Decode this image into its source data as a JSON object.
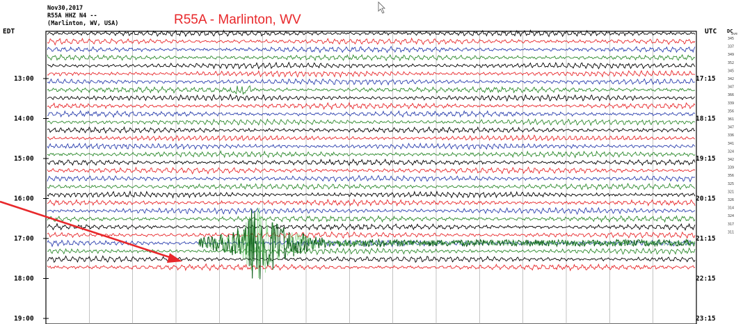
{
  "header": {
    "date": "Nov30,2017",
    "station_line": "R55A HHZ N4 --",
    "location_line": "(Marlinton, WV, USA)"
  },
  "annotation_title": "R55A - Marlinton, WV",
  "chart_data": {
    "type": "line",
    "title": "R55A - Marlinton, WV",
    "left_axis_label": "EDT",
    "right_axis_label": "UTC",
    "dc_header": "DC",
    "dc_subheader": "ave",
    "left_ticks": [
      "13:00",
      "14:00",
      "15:00",
      "16:00",
      "17:00",
      "18:00",
      "19:00"
    ],
    "right_ticks": [
      "17:15",
      "18:15",
      "19:15",
      "20:15",
      "21:15",
      "22:15",
      "23:15"
    ],
    "trace_colors": [
      "#000000",
      "#e8282b",
      "#2b3fae",
      "#2d8a2d"
    ],
    "trace_rows": 30,
    "event": {
      "row": 26,
      "x_range_fraction": [
        0.235,
        0.52
      ],
      "peak_fraction": 0.31,
      "color": "#0f5e1a",
      "highlight_color": "#6fcf6f"
    },
    "dc_offsets": [
      "345",
      "337",
      "349",
      "352",
      "345",
      "342",
      "347",
      "366",
      "339",
      "356",
      "361",
      "347",
      "336",
      "341",
      "324",
      "342",
      "339",
      "356",
      "325",
      "321",
      "326",
      "314",
      "324",
      "317",
      "311"
    ],
    "arrow_color": "#e8282b"
  }
}
